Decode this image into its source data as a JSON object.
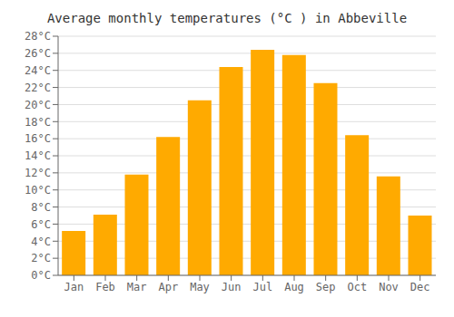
{
  "chart_data": {
    "type": "bar",
    "title": "Average monthly temperatures (°C ) in Abbeville",
    "categories": [
      "Jan",
      "Feb",
      "Mar",
      "Apr",
      "May",
      "Jun",
      "Jul",
      "Aug",
      "Sep",
      "Oct",
      "Nov",
      "Dec"
    ],
    "values": [
      5.2,
      7.1,
      11.8,
      16.2,
      20.5,
      24.4,
      26.4,
      25.8,
      22.5,
      16.4,
      11.6,
      7.0
    ],
    "color": "#FFAA00",
    "ylim": [
      0,
      28
    ],
    "yticks": [
      {
        "value": 0,
        "label": "0°C"
      },
      {
        "value": 2,
        "label": "2°C"
      },
      {
        "value": 4,
        "label": "4°C"
      },
      {
        "value": 6,
        "label": "6°C"
      },
      {
        "value": 8,
        "label": "8°C"
      },
      {
        "value": 10,
        "label": "10°C"
      },
      {
        "value": 12,
        "label": "12°C"
      },
      {
        "value": 14,
        "label": "14°C"
      },
      {
        "value": 16,
        "label": "16°C"
      },
      {
        "value": 18,
        "label": "18°C"
      },
      {
        "value": 20,
        "label": "20°C"
      },
      {
        "value": 22,
        "label": "22°C"
      },
      {
        "value": 24,
        "label": "24°C"
      },
      {
        "value": 26,
        "label": "26°C"
      },
      {
        "value": 28,
        "label": "28°C"
      }
    ],
    "grid": true
  }
}
